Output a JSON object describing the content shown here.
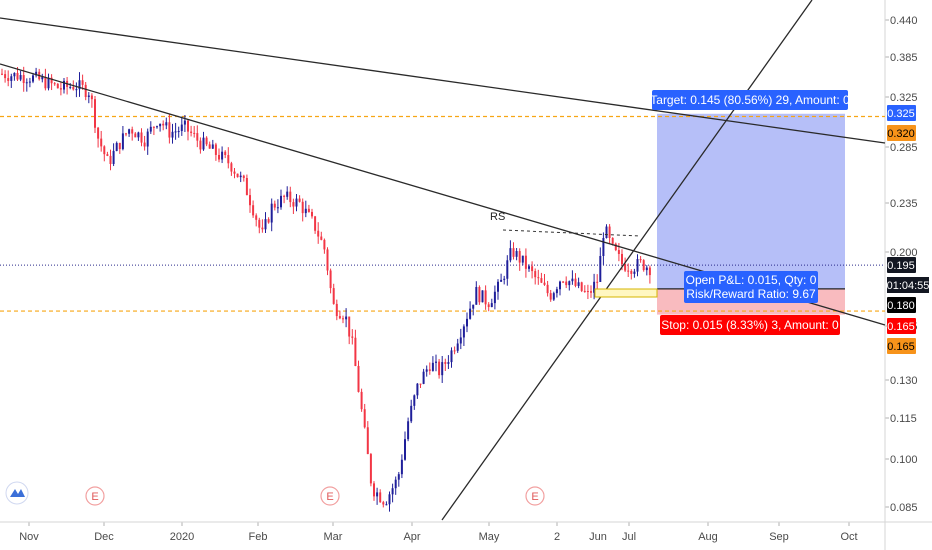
{
  "chart_data": {
    "type": "candlestick",
    "x_ticks": [
      "Nov",
      "Dec",
      "2020",
      "Feb",
      "Mar",
      "Apr",
      "May",
      "2",
      "Jun",
      "Jul",
      "Aug",
      "Sep",
      "Oct"
    ],
    "y_ticks": [
      "0.440",
      "0.385",
      "0.325",
      "0.285",
      "0.235",
      "0.200",
      "0.165",
      "0.130",
      "0.115",
      "0.100",
      "0.085"
    ],
    "y_range": [
      0.08,
      0.47
    ],
    "current_price": "0.195",
    "countdown": "01:04:55",
    "price_tags": [
      {
        "label": "0.325",
        "bg": "#2962ff",
        "fg": "#ffffff"
      },
      {
        "label": "0.320",
        "bg": "#f7931a",
        "fg": "#000000"
      },
      {
        "label": "0.195",
        "bg": "#131722",
        "fg": "#ffffff"
      },
      {
        "label": "0.180",
        "bg": "#000000",
        "fg": "#ffffff"
      },
      {
        "label": "0.165",
        "bg": "#ff0000",
        "fg": "#ffffff"
      },
      {
        "label": "0.165",
        "bg": "#f7931a",
        "fg": "#000000"
      }
    ],
    "position": {
      "target_label": "Target: 0.145 (80.56%) 29, Amount: 0",
      "open_pnl_label": "Open P&L: 0.015, Qty: 0",
      "risk_reward_label": "Risk/Reward Ratio: 9.67",
      "stop_label": "Stop: 0.015 (8.33%) 3, Amount: 0",
      "entry": 0.18,
      "target": 0.325,
      "stop": 0.165
    },
    "annotations": {
      "rs_label": "RS",
      "event_marker": "E"
    },
    "horizontal_levels": [
      0.322,
      0.167
    ],
    "colors": {
      "up": "#1f1f9a",
      "down": "#f23645",
      "target_zone": "#a9b4f7",
      "stop_zone": "#f8b4b8",
      "dash": "#f7a614"
    }
  }
}
